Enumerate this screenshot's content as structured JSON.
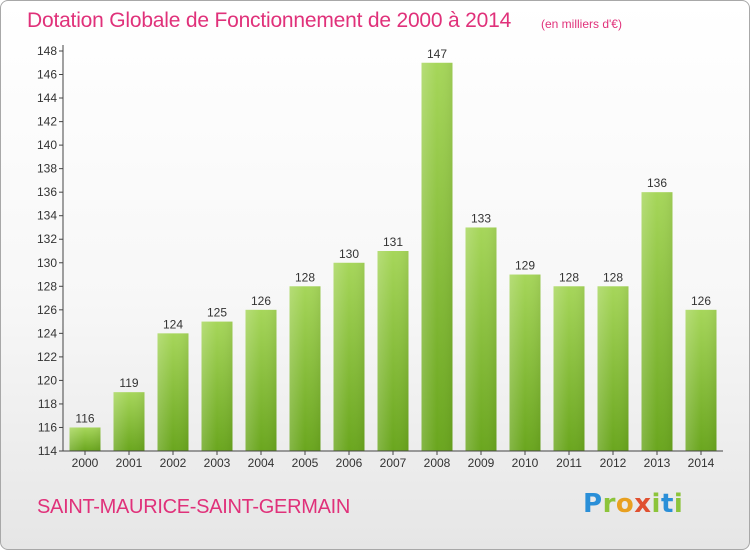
{
  "header": {
    "title": "Dotation Globale de Fonctionnement de 2000 à 2014",
    "unit_note": "(en milliers d'€)"
  },
  "footer": {
    "commune": "SAINT-MAURICE-SAINT-GERMAIN",
    "logo_text": "Proxiti"
  },
  "colors": {
    "title": "#e0317a",
    "bar_top": "#a6d65a",
    "bar_bottom": "#6aa61e",
    "axis": "#444444"
  },
  "chart_data": {
    "type": "bar",
    "title": "Dotation Globale de Fonctionnement de 2000 à 2014",
    "subtitle": "(en milliers d'€)",
    "categories": [
      "2000",
      "2001",
      "2002",
      "2003",
      "2004",
      "2005",
      "2006",
      "2007",
      "2008",
      "2009",
      "2010",
      "2011",
      "2012",
      "2013",
      "2014"
    ],
    "values": [
      116,
      119,
      124,
      125,
      126,
      128,
      130,
      131,
      147,
      133,
      129,
      128,
      128,
      136,
      126
    ],
    "ylim": [
      114,
      148
    ],
    "yticks": [
      114,
      116,
      118,
      120,
      122,
      124,
      126,
      128,
      130,
      132,
      134,
      136,
      138,
      140,
      142,
      144,
      146,
      148
    ],
    "grid": false,
    "data_labels": true
  }
}
